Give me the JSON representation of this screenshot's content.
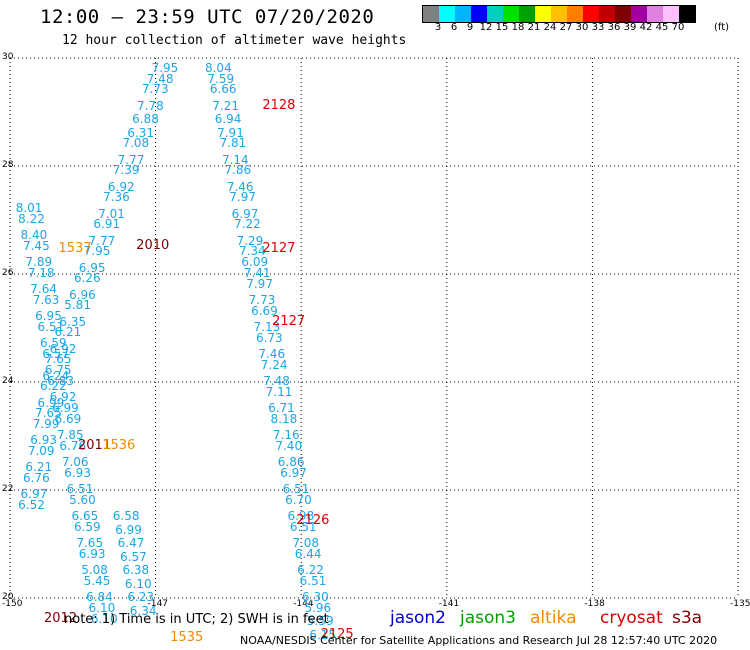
{
  "header": {
    "title": "12:00 – 23:59 UTC 07/20/2020",
    "subtitle": "12 hour collection of altimeter wave heights"
  },
  "scale": {
    "colors": [
      "#808080",
      "#00ffff",
      "#00b4ff",
      "#0000ff",
      "#00d0c0",
      "#00e000",
      "#00a000",
      "#ffff00",
      "#ffc000",
      "#ff8000",
      "#ff0000",
      "#c00000",
      "#800000",
      "#a000a0",
      "#e080e0",
      "#ffc0ff",
      "#000000"
    ],
    "labels": [
      "3",
      "6",
      "9",
      "12",
      "15",
      "18",
      "21",
      "24",
      "27",
      "30",
      "33",
      "36",
      "39",
      "42",
      "45",
      "70"
    ],
    "unit": "(ft)"
  },
  "axes": {
    "x_ticks": [
      "-150",
      "-147",
      "-144",
      "-141",
      "-138",
      "-135"
    ],
    "y_ticks": [
      "30",
      "28",
      "26",
      "24",
      "22",
      "20"
    ],
    "xlim": [
      -150,
      -135
    ],
    "ylim": [
      20,
      30
    ]
  },
  "chart_data": {
    "type": "scatter",
    "colors": {
      "swh_text": "#1aa6e6",
      "jason2": "#0000cc",
      "jason3": "#00a000",
      "altika": "#f08c00",
      "cryosat": "#dd0000",
      "s3a": "#800000"
    },
    "tracks": [
      {
        "points": [
          [
            -147.0,
            29.8,
            "7.95"
          ],
          [
            -147.1,
            29.6,
            "7.48"
          ],
          [
            -147.2,
            29.4,
            "7.73"
          ],
          [
            -147.3,
            29.1,
            "7.78"
          ],
          [
            -147.4,
            28.85,
            "6.88"
          ],
          [
            -147.5,
            28.6,
            "6.31"
          ],
          [
            -147.6,
            28.4,
            "7.08"
          ],
          [
            -147.7,
            28.1,
            "7.77"
          ],
          [
            -147.8,
            27.9,
            "7.39"
          ],
          [
            -147.9,
            27.6,
            "6.92"
          ],
          [
            -148.0,
            27.4,
            "7.36"
          ],
          [
            -148.1,
            27.1,
            "7.01"
          ],
          [
            -148.2,
            26.9,
            "6.91"
          ],
          [
            -148.3,
            26.6,
            "7.77"
          ],
          [
            -148.4,
            26.4,
            "7.95"
          ],
          [
            -148.5,
            26.1,
            "6.95"
          ],
          [
            -148.6,
            25.9,
            "6.26"
          ],
          [
            -148.7,
            25.6,
            "6.96"
          ],
          [
            -148.8,
            25.4,
            "5.81"
          ],
          [
            -148.9,
            25.1,
            "6.35"
          ],
          [
            -149.0,
            24.9,
            "6.21"
          ],
          [
            -149.1,
            24.6,
            "6.92"
          ],
          [
            -149.2,
            24.4,
            "7.65"
          ],
          [
            -149.25,
            24.1,
            "6.24"
          ],
          [
            -149.3,
            23.9,
            "6.22"
          ],
          [
            -149.35,
            23.6,
            "6.99"
          ],
          [
            -149.4,
            23.4,
            "7.65"
          ],
          [
            -149.45,
            23.2,
            "7.99"
          ],
          [
            -149.5,
            22.9,
            "6.93"
          ],
          [
            -149.55,
            22.7,
            "7.09"
          ],
          [
            -149.6,
            22.4,
            "6.21"
          ],
          [
            -149.65,
            22.2,
            "6.76"
          ],
          [
            -149.7,
            21.9,
            "6.97"
          ],
          [
            -149.75,
            21.7,
            "6.52"
          ]
        ]
      },
      {
        "points": [
          [
            -149.8,
            27.2,
            "8.01"
          ],
          [
            -149.75,
            27.0,
            "8.22"
          ],
          [
            -149.7,
            26.7,
            "8.40"
          ],
          [
            -149.65,
            26.5,
            "7.45"
          ],
          [
            -149.6,
            26.2,
            "7.89"
          ],
          [
            -149.55,
            26.0,
            "7.18"
          ],
          [
            -149.5,
            25.7,
            "7.64"
          ],
          [
            -149.45,
            25.5,
            "7.63"
          ],
          [
            -149.4,
            25.2,
            "6.95"
          ],
          [
            -149.35,
            25.0,
            "6.51"
          ],
          [
            -149.3,
            24.7,
            "6.59"
          ],
          [
            -149.25,
            24.5,
            "6.57"
          ],
          [
            -149.2,
            24.2,
            "6.75"
          ],
          [
            -149.15,
            24.0,
            "6.83"
          ],
          [
            -149.1,
            23.7,
            "6.92"
          ],
          [
            -149.05,
            23.5,
            "6.99"
          ],
          [
            -149.0,
            23.3,
            "6.69"
          ],
          [
            -148.95,
            23.0,
            "7.85"
          ],
          [
            -148.9,
            22.8,
            "6.76"
          ],
          [
            -148.85,
            22.5,
            "7.06"
          ],
          [
            -148.8,
            22.3,
            "6.93"
          ],
          [
            -148.75,
            22.0,
            "6.51"
          ],
          [
            -148.7,
            21.8,
            "5.60"
          ],
          [
            -148.65,
            21.5,
            "6.65"
          ],
          [
            -148.6,
            21.3,
            "6.59"
          ],
          [
            -148.55,
            21.0,
            "7.65"
          ],
          [
            -148.5,
            20.8,
            "6.93"
          ],
          [
            -148.45,
            20.5,
            "5.08"
          ],
          [
            -148.4,
            20.3,
            "5.45"
          ],
          [
            -148.35,
            20.0,
            "6.84"
          ],
          [
            -148.3,
            19.8,
            "6.10"
          ],
          [
            -148.25,
            19.6,
            "6.10"
          ]
        ]
      },
      {
        "points": [
          [
            -147.8,
            21.5,
            "6.58"
          ],
          [
            -147.75,
            21.25,
            "6.99"
          ],
          [
            -147.7,
            21.0,
            "6.47"
          ],
          [
            -147.65,
            20.75,
            "6.57"
          ],
          [
            -147.6,
            20.5,
            "6.38"
          ],
          [
            -147.55,
            20.25,
            "6.10"
          ],
          [
            -147.5,
            20.0,
            "6.23"
          ],
          [
            -147.45,
            19.75,
            "6.34"
          ]
        ]
      },
      {
        "points": [
          [
            -145.9,
            29.8,
            "8.04"
          ],
          [
            -145.85,
            29.6,
            "7.59"
          ],
          [
            -145.8,
            29.4,
            "6.66"
          ],
          [
            -145.75,
            29.1,
            "7.21"
          ],
          [
            -145.7,
            28.85,
            "6.94"
          ],
          [
            -145.65,
            28.6,
            "7.91"
          ],
          [
            -145.6,
            28.4,
            "7.81"
          ],
          [
            -145.55,
            28.1,
            "7.14"
          ],
          [
            -145.5,
            27.9,
            "7.86"
          ],
          [
            -145.45,
            27.6,
            "7.46"
          ],
          [
            -145.4,
            27.4,
            "7.97"
          ],
          [
            -145.35,
            27.1,
            "6.97"
          ],
          [
            -145.3,
            26.9,
            "7.22"
          ],
          [
            -145.25,
            26.6,
            "7.29"
          ],
          [
            -145.2,
            26.4,
            "7.34"
          ],
          [
            -145.15,
            26.2,
            "6.09"
          ],
          [
            -145.1,
            26.0,
            "7.41"
          ],
          [
            -145.05,
            25.8,
            "7.97"
          ],
          [
            -145.0,
            25.5,
            "7.73"
          ],
          [
            -144.95,
            25.3,
            "6.69"
          ],
          [
            -144.9,
            25.0,
            "7.13"
          ],
          [
            -144.85,
            24.8,
            "6.73"
          ],
          [
            -144.8,
            24.5,
            "7.46"
          ],
          [
            -144.75,
            24.3,
            "7.24"
          ],
          [
            -144.7,
            24.0,
            "7.48"
          ],
          [
            -144.65,
            23.8,
            "7.11"
          ],
          [
            -144.6,
            23.5,
            "6.71"
          ],
          [
            -144.55,
            23.3,
            "8.18"
          ],
          [
            -144.5,
            23.0,
            "7.16"
          ],
          [
            -144.45,
            22.8,
            "7.40"
          ],
          [
            -144.4,
            22.5,
            "6.86"
          ],
          [
            -144.35,
            22.3,
            "6.97"
          ],
          [
            -144.3,
            22.0,
            "6.51"
          ],
          [
            -144.25,
            21.8,
            "6.70"
          ],
          [
            -144.2,
            21.5,
            "6.98"
          ],
          [
            -144.15,
            21.3,
            "6.51"
          ],
          [
            -144.1,
            21.0,
            "7.08"
          ],
          [
            -144.05,
            20.8,
            "6.44"
          ],
          [
            -144.0,
            20.5,
            "6.22"
          ],
          [
            -143.95,
            20.3,
            "6.51"
          ],
          [
            -143.9,
            20.0,
            "6.30"
          ],
          [
            -143.85,
            19.8,
            "5.96"
          ],
          [
            -143.8,
            19.55,
            "5.59"
          ],
          [
            -143.75,
            19.3,
            "6.15"
          ]
        ]
      }
    ],
    "time_tags": [
      {
        "lon": -144.8,
        "lat": 29.1,
        "text": "2128",
        "sat": "cryosat"
      },
      {
        "lon": -144.8,
        "lat": 26.45,
        "text": "2127",
        "sat": "cryosat"
      },
      {
        "lon": -144.6,
        "lat": 25.1,
        "text": "2127",
        "sat": "cryosat"
      },
      {
        "lon": -144.1,
        "lat": 21.4,
        "text": "2126",
        "sat": "cryosat"
      },
      {
        "lon": -143.6,
        "lat": 19.3,
        "text": "2125",
        "sat": "cryosat"
      },
      {
        "lon": -147.4,
        "lat": 26.5,
        "text": "2010",
        "sat": "s3a"
      },
      {
        "lon": -149.0,
        "lat": 26.45,
        "text": "1537",
        "sat": "altika"
      },
      {
        "lon": -148.6,
        "lat": 22.8,
        "text": "2011",
        "sat": "s3a"
      },
      {
        "lon": -148.1,
        "lat": 22.8,
        "text": "1536",
        "sat": "altika"
      },
      {
        "lon": -149.3,
        "lat": 19.6,
        "text": "2012",
        "sat": "s3a"
      },
      {
        "lon": -146.7,
        "lat": 19.25,
        "text": "1535",
        "sat": "altika"
      }
    ]
  },
  "legend": {
    "note": "note:  1) Time is in UTC;  2) SWH is in feet",
    "satellites": [
      {
        "name": "jason2",
        "color": "#0000cc"
      },
      {
        "name": "jason3",
        "color": "#00a000"
      },
      {
        "name": "altika",
        "color": "#f08c00"
      },
      {
        "name": "cryosat",
        "color": "#dd0000"
      },
      {
        "name": "s3a",
        "color": "#800000"
      }
    ],
    "credit": "NOAA/NESDIS Center for Satellite Applications and Research    Jul 28 12:57:40 UTC 2020"
  }
}
